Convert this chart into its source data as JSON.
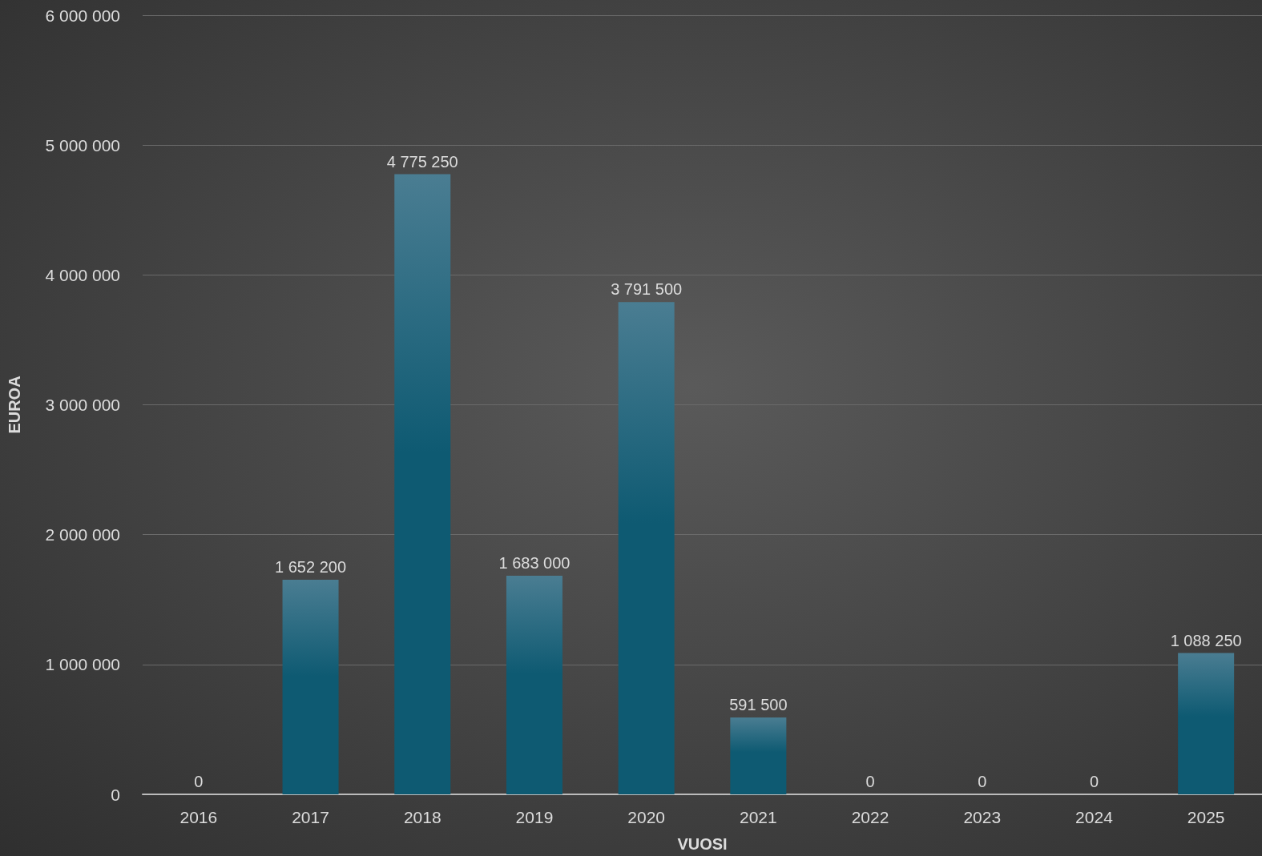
{
  "chart_data": {
    "type": "bar",
    "xlabel": "VUOSI",
    "ylabel": "EUROA",
    "categories": [
      "2016",
      "2017",
      "2018",
      "2019",
      "2020",
      "2021",
      "2022",
      "2023",
      "2024",
      "2025"
    ],
    "values": [
      0,
      1652200,
      4775250,
      1683000,
      3791500,
      591500,
      0,
      0,
      0,
      1088250
    ],
    "value_labels": [
      "0",
      "1 652 200",
      "4 775 250",
      "1 683 000",
      "3 791 500",
      "591 500",
      "0",
      "0",
      "0",
      "1 088 250"
    ],
    "color": "#0e5a72",
    "ylim": [
      0,
      6000000
    ],
    "yticks": [
      {
        "value": 0,
        "label": "0"
      },
      {
        "value": 1000000,
        "label": "1 000 000"
      },
      {
        "value": 2000000,
        "label": "2 000 000"
      },
      {
        "value": 3000000,
        "label": "3 000 000"
      },
      {
        "value": 4000000,
        "label": "4 000 000"
      },
      {
        "value": 5000000,
        "label": "5 000 000"
      },
      {
        "value": 6000000,
        "label": "6 000 000"
      }
    ],
    "grid": "y"
  }
}
